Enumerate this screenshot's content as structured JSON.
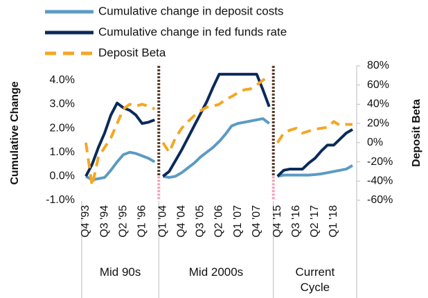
{
  "chart_data": {
    "type": "line",
    "y_label": "Cumulative Change",
    "y2_label": "Deposit Beta",
    "groups": [
      "Mid 90s",
      "Mid 2000s",
      "Current Cycle"
    ],
    "categories": [
      [
        "Q4 '93",
        null,
        null,
        "Q3 '94",
        null,
        null,
        "Q2 '95",
        null,
        null,
        "Q1 '96",
        null,
        null
      ],
      [
        "Q1 '04",
        null,
        null,
        "Q4 '04",
        null,
        null,
        "Q3 '05",
        null,
        null,
        "Q2 '06",
        null,
        null,
        "Q1 '07",
        null,
        null,
        "Q4 '07",
        null,
        null
      ],
      [
        "Q4 '15",
        null,
        null,
        "Q3 '16",
        null,
        null,
        "Q2 '17",
        null,
        null,
        "Q1 '18",
        null,
        null,
        null
      ]
    ],
    "series": [
      {
        "name": "Cumulative change in deposit costs",
        "color": "#5b9bc4",
        "line_style": "solid",
        "axis": "y",
        "values": [
          [
            0,
            -0.15,
            -0.1,
            -0.05,
            0.25,
            0.6,
            0.9,
            1.0,
            0.95,
            0.85,
            0.75,
            0.6
          ],
          [
            0,
            -0.05,
            0,
            0.15,
            0.35,
            0.55,
            0.8,
            1.0,
            1.2,
            1.45,
            1.75,
            2.1,
            2.2,
            2.25,
            2.3,
            2.35,
            2.4,
            2.2
          ],
          [
            0,
            0.05,
            0.05,
            0.05,
            0.05,
            0.05,
            0.07,
            0.1,
            0.15,
            0.2,
            0.25,
            0.3,
            0.45
          ]
        ]
      },
      {
        "name": "Cumulative change in fed funds rate",
        "color": "#0b2a5a",
        "line_style": "solid",
        "axis": "y",
        "values": [
          [
            0,
            0.5,
            1.2,
            1.8,
            2.55,
            3.05,
            2.85,
            2.75,
            2.55,
            2.2,
            2.25,
            2.35
          ],
          [
            0,
            0.2,
            0.65,
            1.1,
            1.6,
            2.1,
            2.6,
            3.1,
            3.7,
            4.25,
            4.25,
            4.25,
            4.25,
            4.25,
            4.25,
            4.25,
            3.6,
            2.9
          ],
          [
            0,
            0.25,
            0.3,
            0.3,
            0.3,
            0.55,
            0.75,
            1.05,
            1.3,
            1.3,
            1.55,
            1.8,
            1.95
          ]
        ]
      },
      {
        "name": "Deposit Beta",
        "color": "#f5a623",
        "line_style": "dashed",
        "axis": "y2",
        "values": [
          [
            0,
            -45,
            -15,
            -5,
            5,
            20,
            35,
            40,
            38,
            40,
            38,
            35
          ],
          [
            0,
            -10,
            5,
            15,
            22,
            28,
            33,
            37,
            38,
            40,
            45,
            48,
            52,
            55,
            56,
            60,
            65,
            70
          ],
          [
            0,
            10,
            13,
            15,
            10,
            12,
            14,
            15,
            16,
            22,
            18,
            19,
            19
          ]
        ]
      }
    ],
    "ylim": [
      -1,
      4.6
    ],
    "yticks": [
      {
        "value": -1,
        "label": "-1.0%"
      },
      {
        "value": 0,
        "label": "0.0%"
      },
      {
        "value": 1,
        "label": "1.0%"
      },
      {
        "value": 2,
        "label": "2.0%"
      },
      {
        "value": 3,
        "label": "3.0%"
      },
      {
        "value": 4,
        "label": "4.0%"
      }
    ],
    "y2lim": [
      -60,
      80
    ],
    "y2ticks": [
      {
        "value": -60,
        "label": "-60%"
      },
      {
        "value": -40,
        "label": "-40%"
      },
      {
        "value": -20,
        "label": "-20%"
      },
      {
        "value": 0,
        "label": "0%"
      },
      {
        "value": 20,
        "label": "20%"
      },
      {
        "value": 40,
        "label": "40%"
      },
      {
        "value": 60,
        "label": "60%"
      },
      {
        "value": 80,
        "label": "80%"
      }
    ],
    "grid": false,
    "legend": "top"
  }
}
